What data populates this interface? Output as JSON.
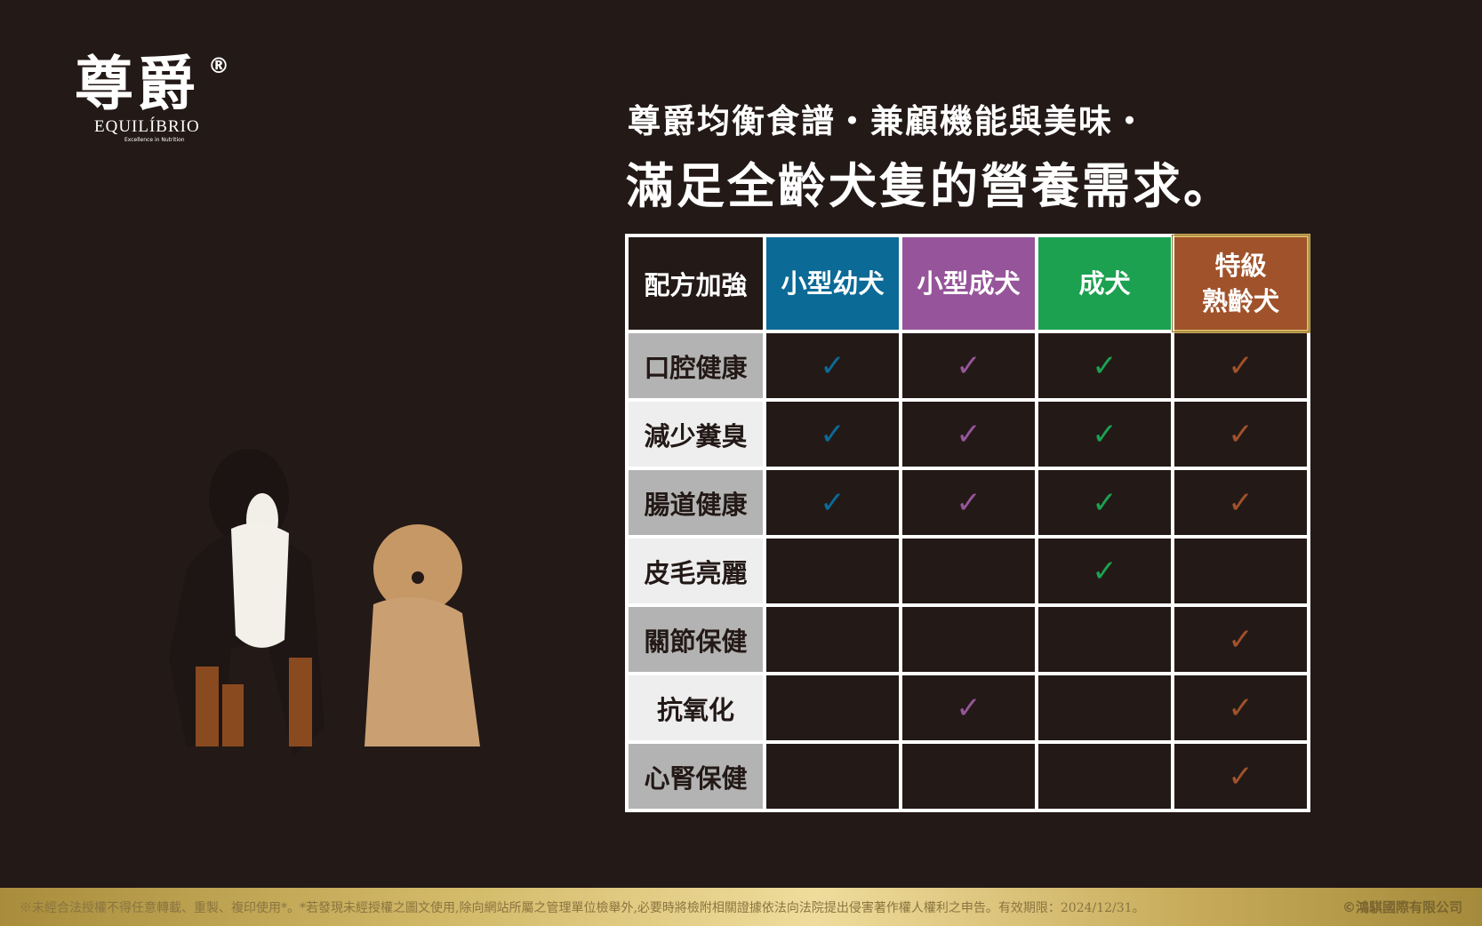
{
  "logo": {
    "cn": "尊爵",
    "reg": "®",
    "en": "EQUILÍBRIO",
    "tagline": "Excellence in Nutrition"
  },
  "headline": {
    "line1": "尊爵均衡食譜・兼顧機能與美味・",
    "line2": "滿足全齡犬隻的營養需求。"
  },
  "table": {
    "corner": "配方加強",
    "columns": [
      {
        "label": "小型幼犬",
        "color": "#0b6a96"
      },
      {
        "label": "小型成犬",
        "color": "#96559a"
      },
      {
        "label": "成犬",
        "color": "#1ba150"
      },
      {
        "label": "特級\n熟齡犬",
        "color": "#a0522a"
      }
    ],
    "check_icon": "checkmark-icon",
    "rows": [
      {
        "label": "口腔健康",
        "bg": "#b3b3b3",
        "checks": [
          true,
          true,
          true,
          true
        ]
      },
      {
        "label": "減少糞臭",
        "bg": "#eeeeee",
        "checks": [
          true,
          true,
          true,
          true
        ]
      },
      {
        "label": "腸道健康",
        "bg": "#b3b3b3",
        "checks": [
          true,
          true,
          true,
          true
        ]
      },
      {
        "label": "皮毛亮麗",
        "bg": "#eeeeee",
        "checks": [
          false,
          false,
          true,
          false
        ]
      },
      {
        "label": "關節保健",
        "bg": "#b3b3b3",
        "checks": [
          false,
          false,
          false,
          true
        ]
      },
      {
        "label": "抗氧化",
        "bg": "#eeeeee",
        "checks": [
          false,
          true,
          false,
          true
        ]
      },
      {
        "label": "心腎保健",
        "bg": "#b3b3b3",
        "checks": [
          false,
          false,
          false,
          true
        ]
      }
    ]
  },
  "footer": {
    "notice": "※未經合法授權不得任意轉載、重製、複印使用*。*若發現未經授權之圖文使用,除向網站所屬之管理單位檢舉外,必要時將檢附相關證據依法向法院提出侵害著作權人權利之申告。有效期限：2024/12/31。",
    "copyright": "©鴻騏國際有限公司"
  }
}
